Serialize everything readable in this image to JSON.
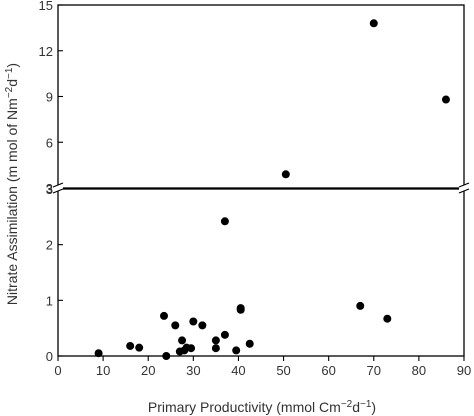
{
  "chart_data": {
    "type": "scatter",
    "title": "",
    "xlabel": "Primary Productivity (mmol Cm",
    "xlabel_sup1": "−2",
    "xlabel_mid": "d",
    "xlabel_sup2": "−1",
    "xlabel_end": ")",
    "ylabel": "Nitrate Assimilation (m mol of Nm",
    "ylabel_sup1": "−2",
    "ylabel_mid": "d",
    "ylabel_sup2": "−1",
    "ylabel_end": ")",
    "xlim": [
      0,
      90
    ],
    "x_ticks": [
      "0",
      "10",
      "20",
      "30",
      "40",
      "50",
      "60",
      "70",
      "80",
      "90"
    ],
    "panels": [
      {
        "name": "upper",
        "ylim": [
          3,
          15
        ],
        "y_ticks": [
          "3",
          "6",
          "9",
          "12",
          "15"
        ],
        "points": [
          {
            "x": 50.5,
            "y": 3.9
          },
          {
            "x": 70,
            "y": 13.8
          },
          {
            "x": 86,
            "y": 8.8
          }
        ]
      },
      {
        "name": "lower",
        "ylim": [
          0,
          3
        ],
        "y_ticks": [
          "0",
          "1",
          "2",
          "3"
        ],
        "points": [
          {
            "x": 9,
            "y": 0.05
          },
          {
            "x": 16,
            "y": 0.18
          },
          {
            "x": 18,
            "y": 0.15
          },
          {
            "x": 23.5,
            "y": 0.72
          },
          {
            "x": 24,
            "y": 0.0
          },
          {
            "x": 26,
            "y": 0.55
          },
          {
            "x": 27,
            "y": 0.08
          },
          {
            "x": 27.5,
            "y": 0.28
          },
          {
            "x": 28,
            "y": 0.1
          },
          {
            "x": 28.5,
            "y": 0.15
          },
          {
            "x": 29.5,
            "y": 0.14
          },
          {
            "x": 30,
            "y": 0.62
          },
          {
            "x": 32,
            "y": 0.55
          },
          {
            "x": 35,
            "y": 0.28
          },
          {
            "x": 35,
            "y": 0.14
          },
          {
            "x": 37,
            "y": 2.42
          },
          {
            "x": 37,
            "y": 0.38
          },
          {
            "x": 39.5,
            "y": 0.1
          },
          {
            "x": 40.5,
            "y": 0.83
          },
          {
            "x": 40.5,
            "y": 0.86
          },
          {
            "x": 42.5,
            "y": 0.22
          },
          {
            "x": 67,
            "y": 0.9
          },
          {
            "x": 73,
            "y": 0.67
          }
        ]
      }
    ]
  }
}
